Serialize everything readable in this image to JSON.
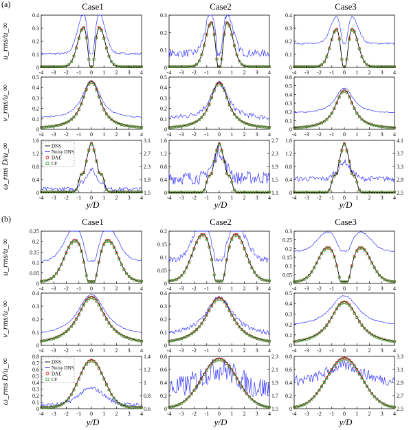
{
  "figure": {
    "part_labels": [
      "(a)",
      "(b)"
    ],
    "column_titles": [
      "Case1",
      "Case2",
      "Case3"
    ],
    "xlabel": "y/D",
    "ylabels": [
      "u_rms/u_∞",
      "v_rms/u_∞",
      "ω_rms D/u_∞"
    ],
    "legend": [
      "DNS",
      "Noisy DNS",
      "DAE",
      "CF"
    ],
    "colors": {
      "dns": "#000000",
      "noisy": "#3333ff",
      "dae": "#e8141e",
      "cf": "#1ea01e"
    }
  },
  "chart_data": [
    {
      "id": "a-u-1",
      "type": "line",
      "part": "a",
      "row": 0,
      "col": 0,
      "xlim": [
        -4,
        4
      ],
      "ylim": [
        0,
        0.4
      ],
      "yticks": [
        "0",
        "0.1",
        "0.2",
        "0.3",
        "0.4"
      ],
      "profile": {
        "kind": "double",
        "peak": 0.335,
        "dip": 0.08,
        "xpk": 0.6,
        "w": 0.9,
        "base": 0.005
      },
      "noisy": {
        "offset": 0.1,
        "scale": 1.0,
        "amp": 0.008,
        "minimum": 0.08
      }
    },
    {
      "id": "a-u-2",
      "type": "line",
      "part": "a",
      "row": 0,
      "col": 1,
      "xlim": [
        -4,
        4
      ],
      "ylim": [
        0,
        0.35
      ],
      "yticks": [
        "0",
        "0.1",
        "0.2",
        "0.3"
      ],
      "profile": {
        "kind": "double",
        "peak": 0.33,
        "dip": 0.07,
        "xpk": 0.6,
        "w": 0.9,
        "base": 0.005
      },
      "noisy": {
        "offset": 0.09,
        "scale": 0.9,
        "amp": 0.025,
        "minimum": 0.05
      }
    },
    {
      "id": "a-u-3",
      "type": "line",
      "part": "a",
      "row": 0,
      "col": 2,
      "xlim": [
        -4,
        4
      ],
      "ylim": [
        0,
        0.4
      ],
      "yticks": [
        "0",
        "0.1",
        "0.2",
        "0.3",
        "0.4"
      ],
      "profile": {
        "kind": "double",
        "peak": 0.32,
        "dip": 0.08,
        "xpk": 0.6,
        "w": 0.9,
        "base": 0.005
      },
      "noisy": {
        "offset": 0.18,
        "scale": 0.7,
        "amp": 0.006,
        "minimum": 0.17
      }
    },
    {
      "id": "a-v-1",
      "type": "line",
      "part": "a",
      "row": 1,
      "col": 0,
      "xlim": [
        -4,
        4
      ],
      "ylim": [
        0,
        0.5
      ],
      "yticks": [
        "0",
        "0.1",
        "0.2",
        "0.3",
        "0.4",
        "0.5"
      ],
      "profile": {
        "kind": "single",
        "peak": 0.46,
        "w": 0.85,
        "base": 0.005
      },
      "noisy": {
        "offset": 0.1,
        "scale": 0.8,
        "amp": 0.005,
        "minimum": 0.09
      }
    },
    {
      "id": "a-v-2",
      "type": "line",
      "part": "a",
      "row": 1,
      "col": 1,
      "xlim": [
        -4,
        4
      ],
      "ylim": [
        0,
        0.5
      ],
      "yticks": [
        "0",
        "0.1",
        "0.2",
        "0.3",
        "0.4",
        "0.5"
      ],
      "profile": {
        "kind": "single",
        "peak": 0.45,
        "w": 0.85,
        "base": 0.005
      },
      "noisy": {
        "offset": 0.1,
        "scale": 0.75,
        "amp": 0.025,
        "minimum": 0.07
      }
    },
    {
      "id": "a-v-3",
      "type": "line",
      "part": "a",
      "row": 1,
      "col": 2,
      "xlim": [
        -4,
        4
      ],
      "ylim": [
        0,
        0.6
      ],
      "yticks": [
        "0",
        "0.1",
        "0.2",
        "0.3",
        "0.4",
        "0.5",
        "0.6"
      ],
      "profile": {
        "kind": "single",
        "peak": 0.45,
        "w": 0.85,
        "base": 0.005
      },
      "noisy": {
        "offset": 0.18,
        "scale": 0.65,
        "amp": 0.006,
        "minimum": 0.17
      }
    },
    {
      "id": "a-w-1",
      "type": "line",
      "part": "a",
      "row": 2,
      "col": 0,
      "xlim": [
        -4,
        4
      ],
      "ylim": [
        0,
        1.6
      ],
      "yticks": [
        "0",
        "0.4",
        "0.8",
        "1.2",
        "1.6"
      ],
      "y2ticks": [
        "1.5",
        "1.9",
        "2.3",
        "2.7",
        "3.1"
      ],
      "profile": {
        "kind": "vort",
        "peak": 1.5,
        "shoulder": 0.6,
        "base": 0.02
      },
      "noisy": {
        "offset": 0.1,
        "scale": 0.4,
        "amp": 0.06,
        "minimum": 0.05
      }
    },
    {
      "id": "a-w-2",
      "type": "line",
      "part": "a",
      "row": 2,
      "col": 1,
      "xlim": [
        -4,
        4
      ],
      "ylim": [
        0,
        1.6
      ],
      "yticks": [
        "0",
        "0.4",
        "0.8",
        "1.2",
        "1.6"
      ],
      "y2ticks": [
        "1.1",
        "1.5",
        "1.9",
        "2.3",
        "2.7"
      ],
      "profile": {
        "kind": "vort",
        "peak": 1.5,
        "shoulder": 0.55,
        "base": 0.01
      },
      "noisy": {
        "offset": 0.45,
        "scale": 0.55,
        "amp": 0.2,
        "minimum": 0.15
      }
    },
    {
      "id": "a-w-3",
      "type": "line",
      "part": "a",
      "row": 2,
      "col": 2,
      "xlim": [
        -4,
        4
      ],
      "ylim": [
        0,
        1.6
      ],
      "yticks": [
        "0",
        "0.4",
        "0.8",
        "1.2",
        "1.6"
      ],
      "y2ticks": [
        "2.5",
        "2.9",
        "3.3",
        "3.7",
        "4.1"
      ],
      "profile": {
        "kind": "vort",
        "peak": 1.5,
        "shoulder": 0.55,
        "base": 0.01
      },
      "noisy": {
        "offset": 0.42,
        "scale": 0.35,
        "amp": 0.08,
        "minimum": 0.25
      }
    },
    {
      "id": "b-u-1",
      "type": "line",
      "part": "b",
      "row": 0,
      "col": 0,
      "xlim": [
        -4,
        4
      ],
      "ylim": [
        0,
        0.25
      ],
      "yticks": [
        "0",
        "0.05",
        "0.1",
        "0.15",
        "0.2",
        "0.25"
      ],
      "profile": {
        "kind": "double",
        "peak": 0.19,
        "dip": 0.075,
        "xpk": 1.3,
        "w": 1.5,
        "base": 0.01
      },
      "noisy": {
        "offset": 0.1,
        "scale": 0.8,
        "amp": 0.004,
        "minimum": 0.09
      }
    },
    {
      "id": "b-u-2",
      "type": "line",
      "part": "b",
      "row": 0,
      "col": 1,
      "xlim": [
        -4,
        4
      ],
      "ylim": [
        0,
        0.22
      ],
      "yticks": [
        "0",
        "0.05",
        "0.1",
        "0.15",
        "0.2"
      ],
      "profile": {
        "kind": "double",
        "peak": 0.19,
        "dip": 0.07,
        "xpk": 1.3,
        "w": 1.5,
        "base": 0.01
      },
      "noisy": {
        "offset": 0.09,
        "scale": 0.75,
        "amp": 0.012,
        "minimum": 0.06
      }
    },
    {
      "id": "b-u-3",
      "type": "line",
      "part": "b",
      "row": 0,
      "col": 2,
      "xlim": [
        -4,
        4
      ],
      "ylim": [
        0,
        0.3
      ],
      "yticks": [
        "0",
        "0.05",
        "0.1",
        "0.15",
        "0.2",
        "0.25",
        "0.3"
      ],
      "profile": {
        "kind": "double",
        "peak": 0.19,
        "dip": 0.07,
        "xpk": 1.3,
        "w": 1.5,
        "base": 0.01
      },
      "noisy": {
        "offset": 0.18,
        "scale": 0.55,
        "amp": 0.004,
        "minimum": 0.17
      }
    },
    {
      "id": "b-v-1",
      "type": "line",
      "part": "b",
      "row": 1,
      "col": 0,
      "xlim": [
        -4,
        4
      ],
      "ylim": [
        0,
        0.45
      ],
      "yticks": [
        "0",
        "0.1",
        "0.2",
        "0.3",
        "0.4"
      ],
      "profile": {
        "kind": "single",
        "peak": 0.42,
        "w": 1.3,
        "base": 0.005
      },
      "noisy": {
        "offset": 0.08,
        "scale": 0.85,
        "amp": 0.004,
        "minimum": 0.07
      }
    },
    {
      "id": "b-v-2",
      "type": "line",
      "part": "b",
      "row": 1,
      "col": 1,
      "xlim": [
        -4,
        4
      ],
      "ylim": [
        0,
        0.45
      ],
      "yticks": [
        "0",
        "0.1",
        "0.2",
        "0.3",
        "0.4"
      ],
      "profile": {
        "kind": "single",
        "peak": 0.41,
        "w": 1.3,
        "base": 0.005
      },
      "noisy": {
        "offset": 0.08,
        "scale": 0.8,
        "amp": 0.02,
        "minimum": 0.05
      }
    },
    {
      "id": "b-v-3",
      "type": "line",
      "part": "b",
      "row": 1,
      "col": 2,
      "xlim": [
        -4,
        4
      ],
      "ylim": [
        0,
        0.5
      ],
      "yticks": [
        "0",
        "0.1",
        "0.2",
        "0.3",
        "0.4",
        "0.5"
      ],
      "profile": {
        "kind": "single",
        "peak": 0.42,
        "w": 1.3,
        "base": 0.005
      },
      "noisy": {
        "offset": 0.18,
        "scale": 0.7,
        "amp": 0.005,
        "minimum": 0.17
      }
    },
    {
      "id": "b-w-1",
      "type": "line",
      "part": "b",
      "row": 2,
      "col": 0,
      "xlim": [
        -4,
        4
      ],
      "ylim": [
        0,
        0.8
      ],
      "yticks": [
        "0",
        "0.1",
        "0.2",
        "0.3",
        "0.4",
        "0.5",
        "0.6",
        "0.7",
        "0.8"
      ],
      "y2ticks": [
        "0.6",
        "0.8",
        "1",
        "1.2",
        "1.4"
      ],
      "profile": {
        "kind": "gauss",
        "peak": 0.75,
        "w": 1.0,
        "base": 0.02
      },
      "noisy": {
        "offset": 0.05,
        "scale": 0.35,
        "amp": 0.03,
        "minimum": 0.02
      }
    },
    {
      "id": "b-w-2",
      "type": "line",
      "part": "b",
      "row": 2,
      "col": 1,
      "xlim": [
        -4,
        4
      ],
      "ylim": [
        0,
        0.8
      ],
      "yticks": [
        "0",
        "0.2",
        "0.4",
        "0.6",
        "0.8"
      ],
      "y2ticks": [
        "1.5",
        "1.7",
        "1.9",
        "2.1",
        "2.3"
      ],
      "profile": {
        "kind": "gauss",
        "peak": 0.77,
        "w": 1.4,
        "base": 0.01
      },
      "noisy": {
        "offset": 0.3,
        "scale": 0.4,
        "amp": 0.18,
        "minimum": 0.05
      }
    },
    {
      "id": "b-w-3",
      "type": "line",
      "part": "b",
      "row": 2,
      "col": 2,
      "xlim": [
        -4,
        4
      ],
      "ylim": [
        0,
        0.8
      ],
      "yticks": [
        "0",
        "0.2",
        "0.4",
        "0.6",
        "0.8"
      ],
      "y2ticks": [
        "2.5",
        "2.7",
        "2.9",
        "3.1",
        "3.3"
      ],
      "profile": {
        "kind": "gauss",
        "peak": 0.78,
        "w": 1.4,
        "base": 0.01
      },
      "noisy": {
        "offset": 0.42,
        "scale": 0.3,
        "amp": 0.08,
        "minimum": 0.3
      }
    }
  ]
}
